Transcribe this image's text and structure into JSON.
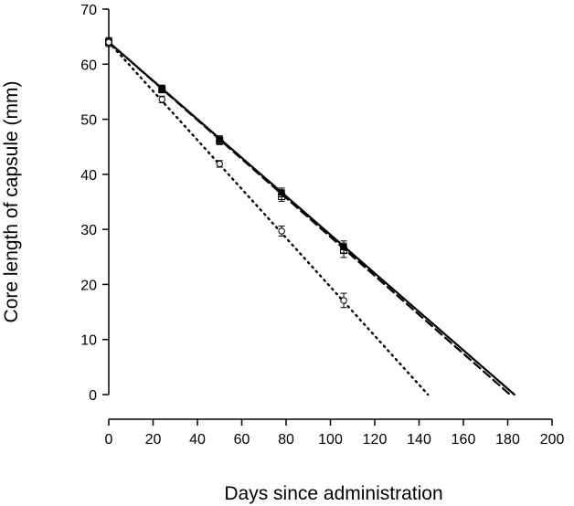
{
  "chart_data": {
    "type": "line",
    "title": "",
    "xlabel": "Days since administration",
    "ylabel": "Core length of capsule (mm)",
    "xlim": [
      0,
      200
    ],
    "ylim": [
      0,
      70
    ],
    "xticks": [
      0,
      20,
      40,
      60,
      80,
      100,
      120,
      140,
      160,
      180,
      200
    ],
    "yticks": [
      0,
      10,
      20,
      30,
      40,
      50,
      60,
      70
    ],
    "grid": false,
    "legend": "none",
    "series": [
      {
        "style": "solid",
        "marker": "filled-square",
        "line": [
          [
            0,
            64.0
          ],
          [
            183,
            0
          ]
        ],
        "points": [
          {
            "x": 0,
            "y": 64.0,
            "err": 0.8
          },
          {
            "x": 24,
            "y": 55.6,
            "err": 0.6
          },
          {
            "x": 50,
            "y": 46.3,
            "err": 0.7
          },
          {
            "x": 78,
            "y": 36.7,
            "err": 0.8
          },
          {
            "x": 106,
            "y": 26.8,
            "err": 1.1
          }
        ]
      },
      {
        "style": "dashed",
        "marker": "open-square",
        "line": [
          [
            0,
            64.0
          ],
          [
            181,
            0
          ]
        ],
        "points": [
          {
            "x": 0,
            "y": 64.0,
            "err": 0.8
          },
          {
            "x": 24,
            "y": 55.4,
            "err": 0.6
          },
          {
            "x": 50,
            "y": 46.1,
            "err": 0.7
          },
          {
            "x": 78,
            "y": 36.0,
            "err": 0.9
          },
          {
            "x": 106,
            "y": 26.2,
            "err": 1.3
          }
        ]
      },
      {
        "style": "dotted",
        "marker": "open-circle",
        "line": [
          [
            0,
            64.0
          ],
          [
            144,
            0
          ]
        ],
        "points": [
          {
            "x": 0,
            "y": 64.0,
            "err": 0.8
          },
          {
            "x": 24,
            "y": 53.6,
            "err": 0.6
          },
          {
            "x": 50,
            "y": 41.9,
            "err": 0.6
          },
          {
            "x": 78,
            "y": 29.7,
            "err": 0.9
          },
          {
            "x": 106,
            "y": 17.1,
            "err": 1.3
          }
        ]
      }
    ]
  }
}
